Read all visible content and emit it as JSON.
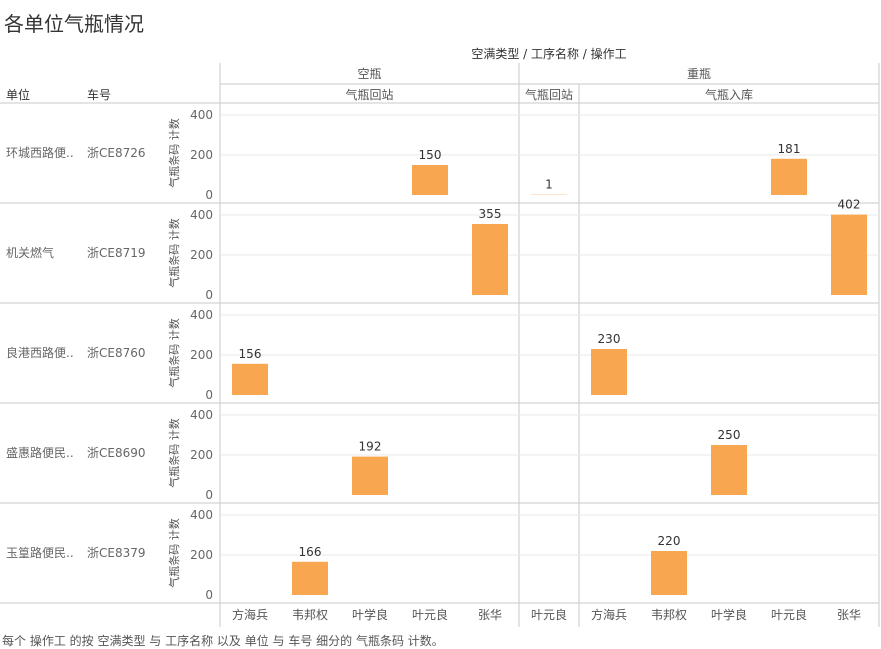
{
  "title": "各单位气瓶情况",
  "footer": "每个 操作工 的按 空满类型 与 工序名称 以及 单位 与 车号 细分的 气瓶条码 计数。",
  "header": {
    "field_path": "空满类型 / 工序名称 / 操作工",
    "unit_label": "单位",
    "car_label": "车号",
    "groups": [
      {
        "label": "空瓶",
        "subgroups": [
          "气瓶回站"
        ]
      },
      {
        "label": "重瓶",
        "subgroups": [
          "气瓶回站",
          "气瓶入库"
        ]
      }
    ]
  },
  "colors": {
    "bar": "#f9a651",
    "grid": "#e8e8e8",
    "divider": "#c8c8c8"
  },
  "chart_data": {
    "type": "bar",
    "ylabel": "气瓶条码 计数",
    "ylim": [
      0,
      450
    ],
    "yticks": [
      0,
      200,
      400
    ],
    "panes": [
      {
        "group": "空瓶",
        "process": "气瓶回站",
        "operators": [
          "方海兵",
          "韦邦权",
          "叶学良",
          "叶元良",
          "张华"
        ]
      },
      {
        "group": "重瓶",
        "process": "气瓶回站",
        "operators": [
          "叶元良"
        ]
      },
      {
        "group": "重瓶",
        "process": "气瓶入库",
        "operators": [
          "方海兵",
          "韦邦权",
          "叶学良",
          "叶元良",
          "张华"
        ]
      }
    ],
    "rows": [
      {
        "unit": "环城西路便..",
        "car": "浙CE8726",
        "values": [
          [
            null,
            null,
            null,
            150,
            null
          ],
          [
            1
          ],
          [
            null,
            null,
            null,
            181,
            null
          ]
        ]
      },
      {
        "unit": "机关燃气",
        "car": "浙CE8719",
        "values": [
          [
            null,
            null,
            null,
            null,
            355
          ],
          [
            null
          ],
          [
            null,
            null,
            null,
            null,
            402
          ]
        ]
      },
      {
        "unit": "良港西路便..",
        "car": "浙CE8760",
        "values": [
          [
            156,
            null,
            null,
            null,
            null
          ],
          [
            null
          ],
          [
            230,
            null,
            null,
            null,
            null
          ]
        ]
      },
      {
        "unit": "盛惠路便民..",
        "car": "浙CE8690",
        "values": [
          [
            null,
            null,
            192,
            null,
            null
          ],
          [
            null
          ],
          [
            null,
            null,
            250,
            null,
            null
          ]
        ]
      },
      {
        "unit": "玉篁路便民..",
        "car": "浙CE8379",
        "values": [
          [
            null,
            166,
            null,
            null,
            null
          ],
          [
            null
          ],
          [
            null,
            220,
            null,
            null,
            null
          ]
        ]
      }
    ]
  }
}
